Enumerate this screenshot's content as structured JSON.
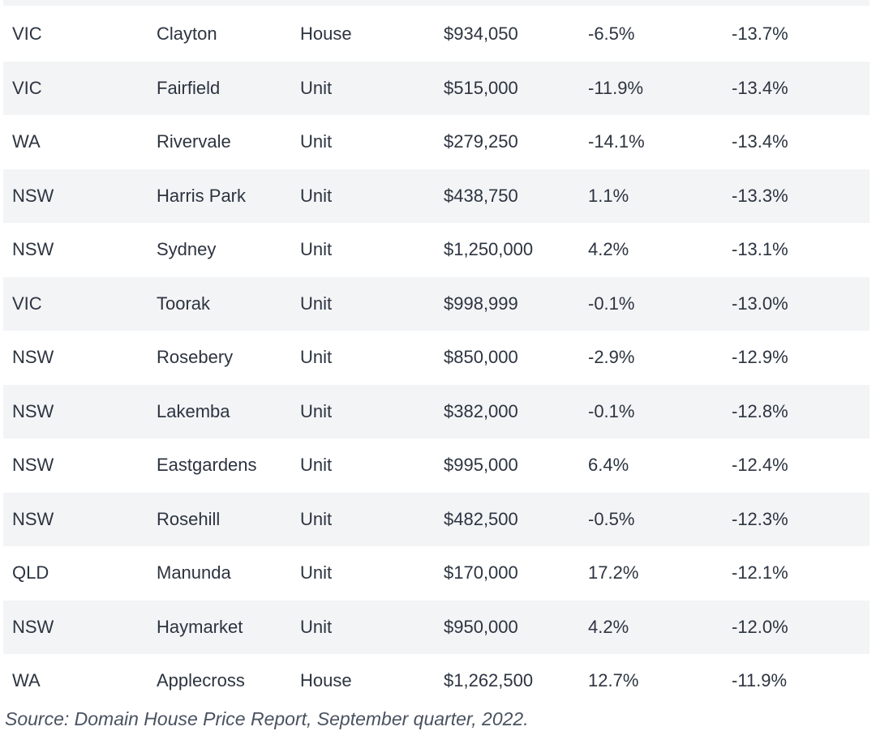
{
  "table": {
    "rows": [
      {
        "state": "VIC",
        "suburb": "Clayton",
        "type": "House",
        "price": "$934,050",
        "change": "-6.5%",
        "annual": "-13.7%"
      },
      {
        "state": "VIC",
        "suburb": "Fairfield",
        "type": "Unit",
        "price": "$515,000",
        "change": "-11.9%",
        "annual": "-13.4%"
      },
      {
        "state": "WA",
        "suburb": "Rivervale",
        "type": "Unit",
        "price": "$279,250",
        "change": "-14.1%",
        "annual": "-13.4%"
      },
      {
        "state": "NSW",
        "suburb": "Harris Park",
        "type": "Unit",
        "price": "$438,750",
        "change": "1.1%",
        "annual": "-13.3%"
      },
      {
        "state": "NSW",
        "suburb": "Sydney",
        "type": "Unit",
        "price": "$1,250,000",
        "change": "4.2%",
        "annual": "-13.1%"
      },
      {
        "state": "VIC",
        "suburb": "Toorak",
        "type": "Unit",
        "price": "$998,999",
        "change": "-0.1%",
        "annual": "-13.0%"
      },
      {
        "state": "NSW",
        "suburb": "Rosebery",
        "type": "Unit",
        "price": "$850,000",
        "change": "-2.9%",
        "annual": "-12.9%"
      },
      {
        "state": "NSW",
        "suburb": "Lakemba",
        "type": "Unit",
        "price": "$382,000",
        "change": "-0.1%",
        "annual": "-12.8%"
      },
      {
        "state": "NSW",
        "suburb": "Eastgardens",
        "type": "Unit",
        "price": "$995,000",
        "change": "6.4%",
        "annual": "-12.4%"
      },
      {
        "state": "NSW",
        "suburb": "Rosehill",
        "type": "Unit",
        "price": "$482,500",
        "change": "-0.5%",
        "annual": "-12.3%"
      },
      {
        "state": "QLD",
        "suburb": "Manunda",
        "type": "Unit",
        "price": "$170,000",
        "change": "17.2%",
        "annual": "-12.1%"
      },
      {
        "state": "NSW",
        "suburb": "Haymarket",
        "type": "Unit",
        "price": "$950,000",
        "change": "4.2%",
        "annual": "-12.0%"
      },
      {
        "state": "WA",
        "suburb": "Applecross",
        "type": "House",
        "price": "$1,262,500",
        "change": "12.7%",
        "annual": "-11.9%"
      }
    ]
  },
  "source": {
    "text": "Source: Domain House Price Report, September quarter, 2022."
  }
}
